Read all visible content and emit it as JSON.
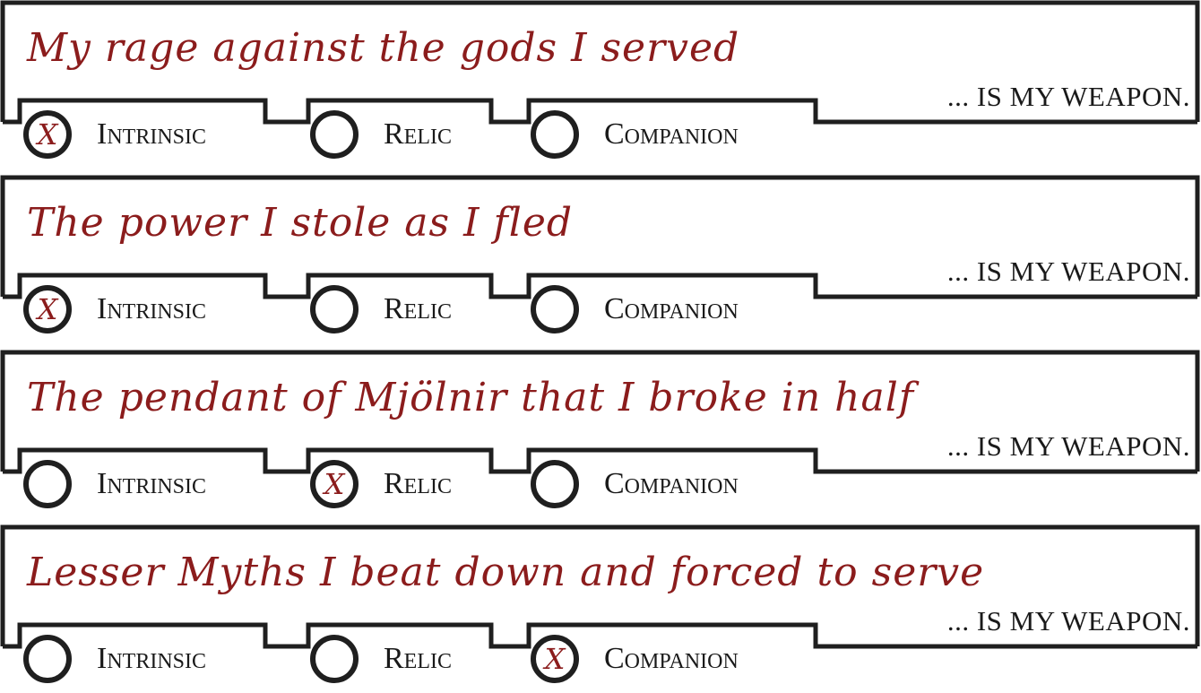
{
  "accent_color": "#8b1c1c",
  "ink_color": "#1f1f1f",
  "suffix": "... IS MY WEAPON.",
  "mark_symbol": "X",
  "options": [
    "Intrinsic",
    "Relic",
    "Companion"
  ],
  "weapons": [
    {
      "text": "My rage against the gods I served",
      "selected": "Intrinsic"
    },
    {
      "text": "The power I stole as I fled",
      "selected": "Intrinsic"
    },
    {
      "text": "The pendant of Mjölnir that I broke in half",
      "selected": "Relic"
    },
    {
      "text": "Lesser Myths I beat down and forced to serve",
      "selected": "Companion"
    }
  ]
}
